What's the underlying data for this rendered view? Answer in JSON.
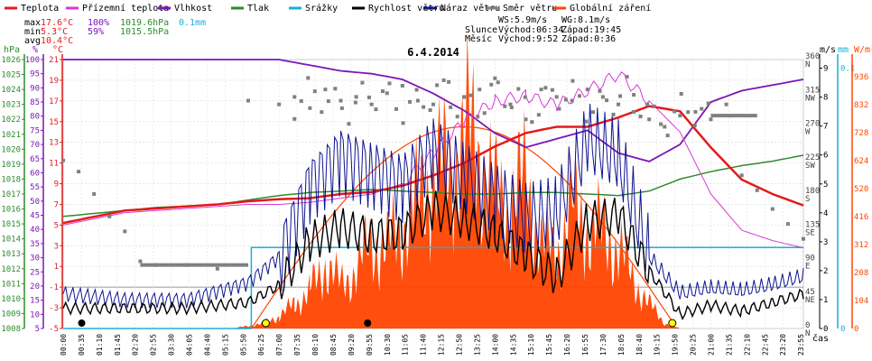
{
  "chart_data": {
    "type": "line",
    "title": "6.4.2014",
    "legend": [
      {
        "name": "Teplota",
        "color": "#e31a1c"
      },
      {
        "name": "Přízemní teplota",
        "color": "#d63ad6"
      },
      {
        "name": "Vlhkost",
        "color": "#7b16b5"
      },
      {
        "name": "Tlak",
        "color": "#2e8b2e"
      },
      {
        "name": "Srážky",
        "color": "#17b0d8"
      },
      {
        "name": "Rychlost větru",
        "color": "#000000"
      },
      {
        "name": "Náraz větru",
        "color": "#0f1490"
      },
      {
        "name": "Směr větru",
        "color": "#808080"
      },
      {
        "name": "Globální záření",
        "color": "#ff4500"
      }
    ],
    "stats": {
      "max": {
        "label": "max",
        "temp": "17.6°C",
        "hum": "100%",
        "press": "1019.6hPa",
        "rain": "0.1mm"
      },
      "min": {
        "label": "min",
        "temp": "5.3°C",
        "hum": "59%",
        "press": "1015.5hPa"
      },
      "avg": {
        "label": "avg",
        "temp": "10.4°C"
      }
    },
    "info": {
      "ws": "WS:5.9m/s",
      "wg": "WG:8.1m/s",
      "sun_label": "Slunce",
      "sunrise": "Východ:06:34",
      "sunset": "Západ:19:45",
      "moon_label": "Měsíc",
      "moonrise": "Východ:9:52",
      "moonset": "Západ:0:36"
    },
    "axis_units": {
      "hpa": "hPa",
      "pct": "%",
      "degc": "°C",
      "ms": "m/s",
      "mm": "mm",
      "wm2": "W/m²",
      "time": "čas"
    },
    "left_axes": {
      "hpa": [
        1008,
        1009,
        1010,
        1011,
        1012,
        1013,
        1014,
        1015,
        1016,
        1017,
        1018,
        1019,
        1020,
        1021,
        1022,
        1023,
        1024,
        1025,
        1026
      ],
      "pct": [
        5,
        10,
        15,
        20,
        25,
        30,
        35,
        40,
        45,
        50,
        55,
        60,
        65,
        70,
        75,
        80,
        85,
        90,
        95,
        100
      ],
      "degc": [
        -5,
        -3,
        -1,
        1,
        3,
        5,
        7,
        9,
        11,
        13,
        15,
        17,
        19,
        21
      ]
    },
    "right_axes": {
      "dir": [
        {
          "v": "360",
          "d": "N"
        },
        {
          "v": "315",
          "d": "NW"
        },
        {
          "v": "270",
          "d": "W"
        },
        {
          "v": "225",
          "d": "SW"
        },
        {
          "v": "180",
          "d": "S"
        },
        {
          "v": "135",
          "d": "SE"
        },
        {
          "v": "90",
          "d": "E"
        },
        {
          "v": "45",
          "d": "NE"
        },
        {
          "v": "0",
          "d": "N"
        }
      ],
      "ms": [
        0,
        1,
        2,
        3,
        4,
        5,
        6,
        7,
        8,
        9
      ],
      "mm": [
        0,
        0.1
      ],
      "wm2": [
        0,
        104,
        208,
        312,
        416,
        520,
        624,
        728,
        832,
        936
      ]
    },
    "ranges": {
      "temp_c": [
        -5,
        21
      ],
      "humidity_pct": [
        5,
        100
      ],
      "pressure_hpa": [
        1008,
        1026
      ],
      "wind_ms": [
        0,
        9.3
      ],
      "direction_deg": [
        0,
        360
      ],
      "radiation_wm2": [
        0,
        1000
      ],
      "rain_mm": [
        0,
        0.1
      ]
    },
    "x_ticks": [
      "00:00",
      "00:35",
      "01:10",
      "01:45",
      "02:20",
      "02:55",
      "03:30",
      "04:05",
      "04:40",
      "05:15",
      "05:50",
      "06:25",
      "07:00",
      "07:35",
      "08:10",
      "08:45",
      "09:20",
      "09:55",
      "10:30",
      "11:05",
      "11:40",
      "12:15",
      "12:50",
      "13:25",
      "14:00",
      "14:35",
      "15:10",
      "15:45",
      "16:20",
      "16:55",
      "17:30",
      "18:05",
      "18:40",
      "19:15",
      "19:50",
      "20:25",
      "21:00",
      "21:35",
      "22:10",
      "22:45",
      "23:20",
      "23:55"
    ],
    "series": [
      {
        "name": "Teplota",
        "x": [
          0,
          1,
          2,
          3,
          4,
          5,
          6,
          7,
          8,
          9,
          10,
          11,
          12,
          13,
          14,
          15,
          16,
          17,
          18,
          19,
          20,
          21,
          22,
          23,
          24
        ],
        "y": [
          5.2,
          5.8,
          6.4,
          6.6,
          6.8,
          7.0,
          7.3,
          7.5,
          7.6,
          8.0,
          8.2,
          8.8,
          9.8,
          11.0,
          12.6,
          13.9,
          14.5,
          14.5,
          15.4,
          16.5,
          16.0,
          12.5,
          9.4,
          8.0,
          6.9
        ]
      },
      {
        "name": "Přízemní teplota",
        "x": [
          0,
          1,
          2,
          3,
          4,
          5,
          6,
          7,
          8,
          9,
          10,
          11,
          12,
          13,
          14,
          15,
          16,
          17,
          18,
          19,
          20,
          21,
          22,
          23,
          24
        ],
        "y": [
          5.0,
          5.6,
          6.2,
          6.4,
          6.6,
          6.8,
          7.0,
          7.0,
          7.2,
          7.6,
          8.0,
          9.0,
          12.0,
          15.0,
          17.0,
          17.5,
          16.6,
          18.0,
          19.6,
          17.0,
          14.0,
          8.0,
          4.5,
          3.5,
          2.8
        ]
      },
      {
        "name": "Vlhkost",
        "x": [
          0,
          1,
          2,
          3,
          4,
          5,
          6,
          7,
          8,
          9,
          10,
          11,
          12,
          13,
          14,
          15,
          16,
          17,
          18,
          19,
          20,
          21,
          22,
          23,
          24
        ],
        "y": [
          100,
          100,
          100,
          100,
          100,
          100,
          100,
          100,
          98,
          96,
          95,
          93,
          88,
          82,
          74,
          69,
          72,
          75,
          67,
          64,
          70,
          85,
          89,
          91,
          93
        ]
      },
      {
        "name": "Tlak",
        "x": [
          0,
          1,
          2,
          3,
          4,
          5,
          6,
          7,
          8,
          9,
          10,
          11,
          12,
          13,
          14,
          15,
          16,
          17,
          18,
          19,
          20,
          21,
          22,
          23,
          24
        ],
        "y": [
          1015.5,
          1015.7,
          1015.9,
          1016.1,
          1016.2,
          1016.3,
          1016.6,
          1016.9,
          1017.1,
          1017.2,
          1017.3,
          1017.2,
          1017.1,
          1017.0,
          1017.0,
          1017.1,
          1017.1,
          1017.0,
          1016.9,
          1017.2,
          1018.0,
          1018.5,
          1018.9,
          1019.2,
          1019.6
        ]
      },
      {
        "name": "Rychlost větru",
        "x": [
          0,
          2,
          4,
          6,
          7,
          8,
          9,
          10,
          11,
          12,
          13,
          14,
          15,
          16,
          17,
          18,
          19,
          20,
          21,
          22,
          23,
          24
        ],
        "y": [
          0.7,
          0.7,
          0.7,
          0.9,
          1.5,
          3.0,
          3.5,
          3.2,
          3.3,
          4.1,
          3.8,
          3.3,
          2.5,
          1.8,
          3.7,
          3.9,
          2.0,
          0.5,
          0.8,
          0.6,
          0.9,
          1.2
        ]
      },
      {
        "name": "Náraz větru",
        "x": [
          0,
          2,
          4,
          6,
          7,
          8,
          9,
          10,
          11,
          12,
          13,
          14,
          15,
          16,
          17,
          18,
          19,
          20,
          21,
          22,
          23,
          24
        ],
        "y": [
          1.2,
          1.0,
          1.0,
          1.6,
          2.5,
          5.0,
          6.0,
          5.5,
          5.0,
          6.2,
          5.3,
          4.5,
          3.8,
          4.0,
          6.5,
          5.9,
          2.5,
          1.2,
          1.4,
          1.3,
          1.5,
          1.8
        ]
      },
      {
        "name": "Globální záření",
        "x": [
          5.5,
          6.5,
          7,
          7.5,
          8,
          8.5,
          9,
          9.5,
          10,
          10.5,
          11,
          11.5,
          12,
          12.5,
          13,
          13.5,
          14,
          14.5,
          15,
          15.5,
          16,
          16.5,
          17,
          17.5,
          18,
          18.5,
          19,
          19.5,
          20
        ],
        "y": [
          0,
          20,
          45,
          90,
          140,
          240,
          160,
          220,
          320,
          300,
          380,
          460,
          600,
          560,
          720,
          650,
          480,
          470,
          540,
          320,
          280,
          450,
          380,
          350,
          300,
          180,
          90,
          20,
          0
        ]
      },
      {
        "name": "Směr větru",
        "x": [
          0,
          0.5,
          1,
          1.5,
          2,
          2.5,
          3,
          4,
          5,
          6,
          7,
          7.5,
          8,
          8.5,
          9,
          9.5,
          10,
          10.5,
          11,
          11.5,
          12,
          12.5,
          13,
          13.5,
          14,
          14.5,
          15,
          15.5,
          16,
          16.5,
          17,
          17.5,
          18,
          18.5,
          19,
          19.5,
          20,
          20.5,
          21,
          21.5,
          22,
          22.5,
          23,
          23.5,
          24
        ],
        "y": [
          225,
          210,
          180,
          150,
          130,
          90,
          85,
          85,
          80,
          305,
          300,
          310,
          295,
          320,
          305,
          310,
          300,
          315,
          325,
          305,
          300,
          330,
          310,
          320,
          335,
          300,
          280,
          320,
          310,
          305,
          320,
          310,
          300,
          290,
          280,
          270,
          285,
          290,
          280,
          300,
          205,
          185,
          160,
          140,
          120
        ]
      }
    ]
  }
}
